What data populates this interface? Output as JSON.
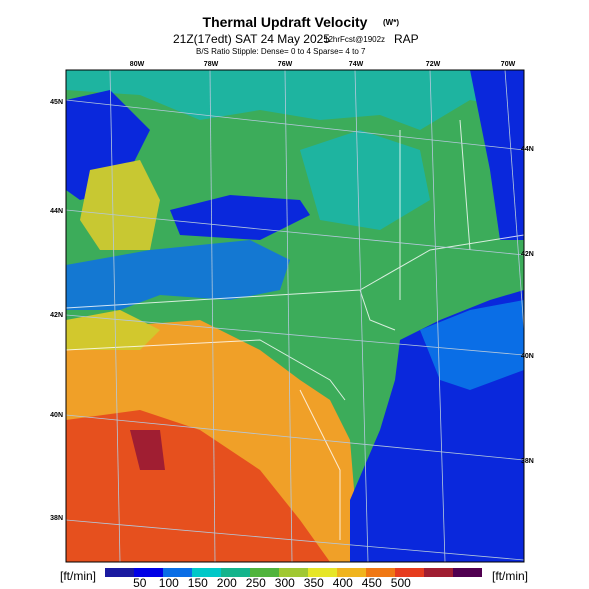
{
  "header": {
    "title": "Thermal Updraft Velocity",
    "title_tag": "(W*)",
    "valid": "21Z(17edt) SAT 24 May 2025",
    "forecast": "12hrFcst@1902z",
    "model": "RAP",
    "stipple": "B/S Ratio Stipple: Dense= 0 to 4 Sparse= 4 to 7"
  },
  "map": {
    "lon_labels": [
      "80W",
      "78W",
      "76W",
      "74W",
      "72W",
      "70W"
    ],
    "lat_labels_left": [
      "45N",
      "44N",
      "42N",
      "40N",
      "38N"
    ],
    "lat_labels_right": [
      "44N",
      "42N",
      "40N",
      "38N"
    ]
  },
  "colorbar": {
    "unit_left": "[ft/min]",
    "unit_right": "[ft/min]",
    "labels": [
      "50",
      "100",
      "150",
      "200",
      "250",
      "300",
      "350",
      "400",
      "450",
      "500"
    ],
    "colors": [
      "#1a1aa0",
      "#0000e6",
      "#0a6ee6",
      "#00c8c8",
      "#14b48c",
      "#50b43c",
      "#a0c832",
      "#e6e628",
      "#f0b41e",
      "#f07814",
      "#e63c1e",
      "#a01e32",
      "#500050"
    ]
  }
}
